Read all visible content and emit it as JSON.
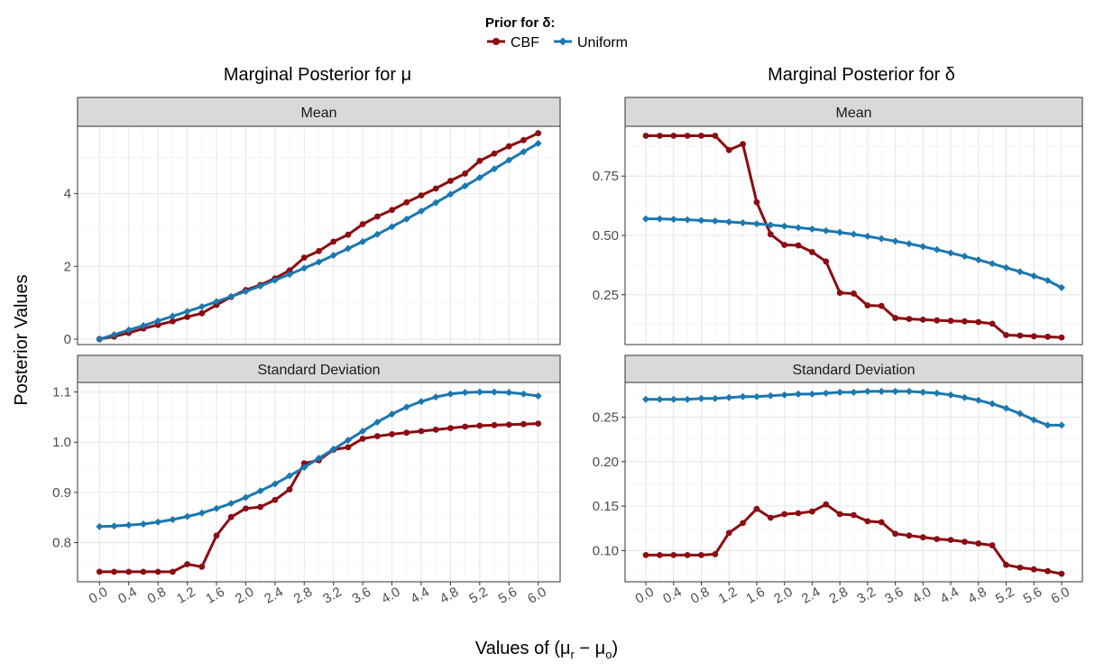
{
  "legend": {
    "title": "Prior for δ:",
    "entries": [
      {
        "label": "CBF",
        "color": "#8B0D12"
      },
      {
        "label": "Uniform",
        "color": "#1B78B0"
      }
    ]
  },
  "column_titles": [
    "Marginal Posterior for μ",
    "Marginal Posterior for δ"
  ],
  "strip_labels": [
    "Mean",
    "Standard Deviation"
  ],
  "ylabel": "Posterior Values",
  "xlabel": "Values of (μr − μo)",
  "chart_data": {
    "type": "line",
    "x": [
      0.0,
      0.2,
      0.4,
      0.6,
      0.8,
      1.0,
      1.2,
      1.4,
      1.6,
      1.8,
      2.0,
      2.2,
      2.4,
      2.6,
      2.8,
      3.0,
      3.2,
      3.4,
      3.6,
      3.8,
      4.0,
      4.2,
      4.4,
      4.6,
      4.8,
      5.0,
      5.2,
      5.4,
      5.6,
      5.8,
      6.0
    ],
    "x_tick_labels": [
      "0.0",
      "0.4",
      "0.8",
      "1.2",
      "1.6",
      "2.0",
      "2.4",
      "2.8",
      "3.2",
      "3.6",
      "4.0",
      "4.4",
      "4.8",
      "5.2",
      "5.6",
      "6.0"
    ],
    "x_tick_values": [
      0.0,
      0.4,
      0.8,
      1.2,
      1.6,
      2.0,
      2.4,
      2.8,
      3.2,
      3.6,
      4.0,
      4.4,
      4.8,
      5.2,
      5.6,
      6.0
    ],
    "grid": true,
    "legend_position": "top",
    "panels": [
      {
        "column": "Marginal Posterior for μ",
        "facet": "Mean",
        "ylim": [
          -0.15,
          5.85
        ],
        "y_ticks": [
          0,
          2,
          4
        ],
        "y_tick_labels": [
          "0",
          "2",
          "4"
        ],
        "series": [
          {
            "name": "CBF",
            "values": [
              0.0,
              0.07,
              0.17,
              0.29,
              0.39,
              0.49,
              0.61,
              0.71,
              0.94,
              1.16,
              1.35,
              1.49,
              1.67,
              1.89,
              2.24,
              2.42,
              2.68,
              2.87,
              3.16,
              3.37,
              3.55,
              3.76,
              3.95,
              4.14,
              4.35,
              4.55,
              4.9,
              5.1,
              5.3,
              5.47,
              5.66
            ]
          },
          {
            "name": "Uniform",
            "values": [
              0.0,
              0.12,
              0.25,
              0.37,
              0.5,
              0.63,
              0.76,
              0.89,
              1.03,
              1.17,
              1.31,
              1.46,
              1.62,
              1.78,
              1.95,
              2.12,
              2.3,
              2.49,
              2.68,
              2.88,
              3.09,
              3.3,
              3.52,
              3.75,
              3.98,
              4.21,
              4.44,
              4.68,
              4.92,
              5.15,
              5.38
            ]
          }
        ]
      },
      {
        "column": "Marginal Posterior for δ",
        "facet": "Mean",
        "ylim": [
          0.04,
          0.96
        ],
        "y_ticks": [
          0.25,
          0.5,
          0.75
        ],
        "y_tick_labels": [
          "0.25",
          "0.50",
          "0.75"
        ],
        "series": [
          {
            "name": "CBF",
            "values": [
              0.92,
              0.92,
              0.92,
              0.92,
              0.92,
              0.92,
              0.86,
              0.885,
              0.64,
              0.505,
              0.46,
              0.458,
              0.43,
              0.39,
              0.258,
              0.255,
              0.205,
              0.203,
              0.152,
              0.148,
              0.145,
              0.142,
              0.14,
              0.138,
              0.135,
              0.128,
              0.08,
              0.078,
              0.075,
              0.073,
              0.07
            ]
          },
          {
            "name": "Uniform",
            "values": [
              0.57,
              0.57,
              0.568,
              0.566,
              0.563,
              0.561,
              0.557,
              0.553,
              0.549,
              0.544,
              0.539,
              0.533,
              0.527,
              0.52,
              0.513,
              0.505,
              0.496,
              0.486,
              0.476,
              0.465,
              0.453,
              0.44,
              0.426,
              0.412,
              0.397,
              0.381,
              0.364,
              0.347,
              0.329,
              0.31,
              0.28
            ]
          }
        ]
      },
      {
        "column": "Marginal Posterior for μ",
        "facet": "Standard Deviation",
        "ylim": [
          0.722,
          1.119
        ],
        "y_ticks": [
          0.8,
          0.9,
          1.0,
          1.1
        ],
        "y_tick_labels": [
          "0.8",
          "0.9",
          "1.0",
          "1.1"
        ],
        "series": [
          {
            "name": "CBF",
            "values": [
              0.742,
              0.742,
              0.742,
              0.742,
              0.742,
              0.742,
              0.757,
              0.752,
              0.814,
              0.851,
              0.868,
              0.871,
              0.885,
              0.906,
              0.958,
              0.964,
              0.985,
              0.99,
              1.007,
              1.012,
              1.016,
              1.019,
              1.022,
              1.025,
              1.028,
              1.031,
              1.033,
              1.034,
              1.035,
              1.036,
              1.037
            ]
          },
          {
            "name": "Uniform",
            "values": [
              0.832,
              0.833,
              0.835,
              0.837,
              0.841,
              0.846,
              0.852,
              0.859,
              0.868,
              0.878,
              0.89,
              0.903,
              0.917,
              0.933,
              0.95,
              0.968,
              0.986,
              1.004,
              1.022,
              1.04,
              1.056,
              1.07,
              1.081,
              1.09,
              1.096,
              1.099,
              1.1,
              1.1,
              1.099,
              1.096,
              1.092
            ]
          }
        ]
      },
      {
        "column": "Marginal Posterior for δ",
        "facet": "Standard Deviation",
        "ylim": [
          0.065,
          0.289
        ],
        "y_ticks": [
          0.1,
          0.15,
          0.2,
          0.25
        ],
        "y_tick_labels": [
          "0.10",
          "0.15",
          "0.20",
          "0.25"
        ],
        "series": [
          {
            "name": "CBF",
            "values": [
              0.095,
              0.095,
              0.095,
              0.095,
              0.095,
              0.096,
              0.12,
              0.131,
              0.147,
              0.137,
              0.141,
              0.142,
              0.144,
              0.152,
              0.141,
              0.14,
              0.133,
              0.132,
              0.119,
              0.117,
              0.115,
              0.113,
              0.112,
              0.11,
              0.108,
              0.106,
              0.084,
              0.081,
              0.079,
              0.077,
              0.074
            ]
          },
          {
            "name": "Uniform",
            "values": [
              0.27,
              0.27,
              0.27,
              0.27,
              0.271,
              0.271,
              0.272,
              0.273,
              0.273,
              0.274,
              0.275,
              0.276,
              0.276,
              0.277,
              0.278,
              0.278,
              0.279,
              0.279,
              0.279,
              0.279,
              0.278,
              0.277,
              0.275,
              0.272,
              0.269,
              0.265,
              0.26,
              0.254,
              0.247,
              0.241,
              0.241
            ]
          }
        ]
      }
    ]
  }
}
